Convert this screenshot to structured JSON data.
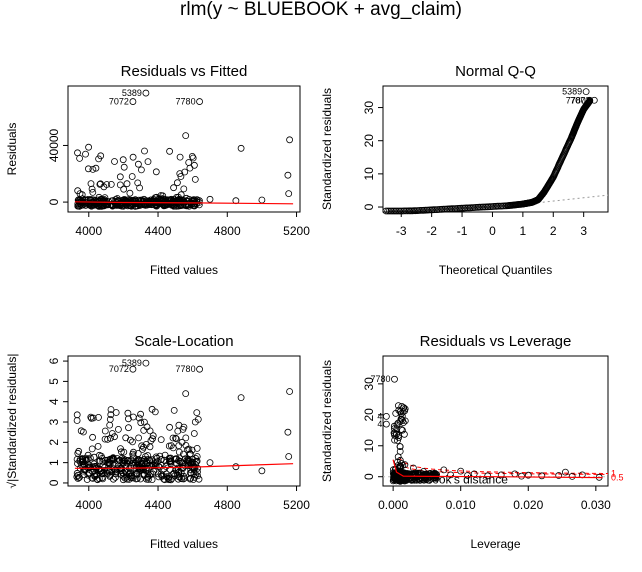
{
  "main_title": "rlm(y ~ BLUEBOOK + avg_claim)",
  "chart_data": [
    {
      "type": "scatter",
      "title": "Residuals vs Fitted",
      "xlabel": "Fitted values",
      "ylabel": "Residuals",
      "xlim": [
        3880,
        5220
      ],
      "ylim": [
        -7000,
        82000
      ],
      "xticks": [
        4000,
        4400,
        4800,
        5200
      ],
      "yticks": [
        0,
        40000
      ],
      "labeled_points": [
        {
          "label": "5389",
          "x": 4330,
          "y": 77000
        },
        {
          "label": "7072",
          "x": 4255,
          "y": 71000
        },
        {
          "label": "7780",
          "x": 4640,
          "y": 71000
        }
      ],
      "extra_points": [
        [
          4560,
          47000
        ],
        [
          4615,
          16000
        ],
        [
          4880,
          38000
        ],
        [
          5000,
          1500
        ],
        [
          5160,
          44000
        ],
        [
          5150,
          19000
        ],
        [
          5155,
          6000
        ],
        [
          4850,
          1000
        ],
        [
          4700,
          2000
        ],
        [
          4610,
          26000
        ]
      ],
      "cloud": {
        "x_range": [
          3930,
          4640
        ],
        "y_low": -3000,
        "y_high": 40000,
        "count": 420
      },
      "smooth": [
        [
          3920,
          200
        ],
        [
          4200,
          -300
        ],
        [
          4600,
          -600
        ],
        [
          5180,
          -1200
        ]
      ],
      "colors": {
        "smooth": "#ff0000"
      }
    },
    {
      "type": "scatter",
      "title": "Normal Q-Q",
      "xlabel": "Theoretical Quantiles",
      "ylabel": "Standardized residuals",
      "xlim": [
        -3.6,
        3.8
      ],
      "ylim": [
        -1.5,
        36.5
      ],
      "xticks": [
        -3,
        -2,
        -1,
        0,
        1,
        2,
        3
      ],
      "yticks": [
        0,
        10,
        20,
        30
      ],
      "labeled_points": [
        {
          "label": "5389",
          "x": 3.08,
          "y": 34.8
        },
        {
          "label": "7072",
          "x": 3.35,
          "y": 32.2
        },
        {
          "label": "7780",
          "x": 3.2,
          "y": 32.2
        }
      ],
      "qq_curve": [
        [
          -3.5,
          -1.3
        ],
        [
          -2.5,
          -1.1
        ],
        [
          -1.5,
          -0.6
        ],
        [
          -0.5,
          -0.1
        ],
        [
          0.5,
          0.4
        ],
        [
          1.0,
          0.9
        ],
        [
          1.3,
          1.4
        ],
        [
          1.5,
          2.2
        ],
        [
          1.7,
          4.5
        ],
        [
          2.0,
          9.0
        ],
        [
          2.3,
          15.0
        ],
        [
          2.6,
          21.0
        ],
        [
          2.8,
          25.5
        ],
        [
          3.0,
          29.5
        ],
        [
          3.2,
          32.0
        ]
      ],
      "qq_line": [
        [
          1.0,
          0.8
        ],
        [
          3.8,
          3.6
        ]
      ],
      "colors": {
        "qqline": "#999999"
      }
    },
    {
      "type": "scatter",
      "title": "Scale-Location",
      "xlabel": "Fitted values",
      "ylabel": "√|Standardized residuals|",
      "xlim": [
        3880,
        5220
      ],
      "ylim": [
        -0.15,
        6.25
      ],
      "xticks": [
        4000,
        4400,
        4800,
        5200
      ],
      "yticks": [
        0,
        1,
        2,
        3,
        4,
        5,
        6
      ],
      "labeled_points": [
        {
          "label": "5389",
          "x": 4330,
          "y": 5.9
        },
        {
          "label": "7072",
          "x": 4255,
          "y": 5.6
        },
        {
          "label": "7780",
          "x": 4640,
          "y": 5.6
        }
      ],
      "extra_points": [
        [
          4560,
          4.4
        ],
        [
          4615,
          3.0
        ],
        [
          4880,
          4.2
        ],
        [
          5160,
          4.5
        ],
        [
          5150,
          2.5
        ],
        [
          5155,
          1.3
        ],
        [
          5000,
          0.6
        ],
        [
          4700,
          1.0
        ],
        [
          4850,
          0.8
        ]
      ],
      "cloud": {
        "x_range": [
          3930,
          4640
        ],
        "y_low": 0.05,
        "y_high": 3.6,
        "count": 420
      },
      "smooth": [
        [
          3920,
          0.72
        ],
        [
          4200,
          0.72
        ],
        [
          4600,
          0.78
        ],
        [
          5180,
          0.95
        ]
      ],
      "colors": {
        "smooth": "#ff0000"
      }
    },
    {
      "type": "scatter",
      "title": "Residuals vs Leverage",
      "xlabel": "Leverage",
      "ylabel": "Standardized residuals",
      "xlim": [
        -0.0015,
        0.0318
      ],
      "ylim": [
        -3,
        39
      ],
      "xticks": [
        0.0,
        0.01,
        0.02,
        0.03
      ],
      "xtick_labels": [
        "0.000",
        "0.010",
        "0.020",
        "0.030"
      ],
      "yticks": [
        0,
        10,
        20,
        30
      ],
      "labeled_points": [
        {
          "label": "7780",
          "x": 0.0002,
          "y": 31.5
        },
        {
          "label": "4",
          "x": -0.001,
          "y": 19.5
        },
        {
          "label": "4",
          "x": -0.001,
          "y": 17.0
        }
      ],
      "cooks_contour_labels": [
        "1",
        "0.5"
      ],
      "cook_label": "Cook's distance",
      "spread_points": [
        [
          0.006,
          1.0
        ],
        [
          0.0085,
          0.6
        ],
        [
          0.011,
          0.4
        ],
        [
          0.012,
          0.9
        ],
        [
          0.014,
          0.3
        ],
        [
          0.016,
          0.6
        ],
        [
          0.018,
          0.9
        ],
        [
          0.019,
          0.2
        ],
        [
          0.02,
          0.5
        ],
        [
          0.022,
          0.3
        ],
        [
          0.0245,
          0.4
        ],
        [
          0.0255,
          1.5
        ],
        [
          0.0265,
          0.1
        ],
        [
          0.028,
          0.6
        ],
        [
          0.0305,
          -0.2
        ],
        [
          0.0075,
          2.2
        ],
        [
          0.01,
          1.8
        ],
        [
          0.0045,
          1.7
        ],
        [
          0.003,
          2.8
        ]
      ],
      "smooth": [
        [
          0.0,
          5.5
        ],
        [
          0.0005,
          1.5
        ],
        [
          0.0015,
          0.2
        ],
        [
          0.005,
          0.1
        ],
        [
          0.015,
          0.0
        ],
        [
          0.031,
          -0.3
        ]
      ],
      "colors": {
        "smooth": "#ff0000",
        "cook": "#ff0000"
      }
    }
  ]
}
